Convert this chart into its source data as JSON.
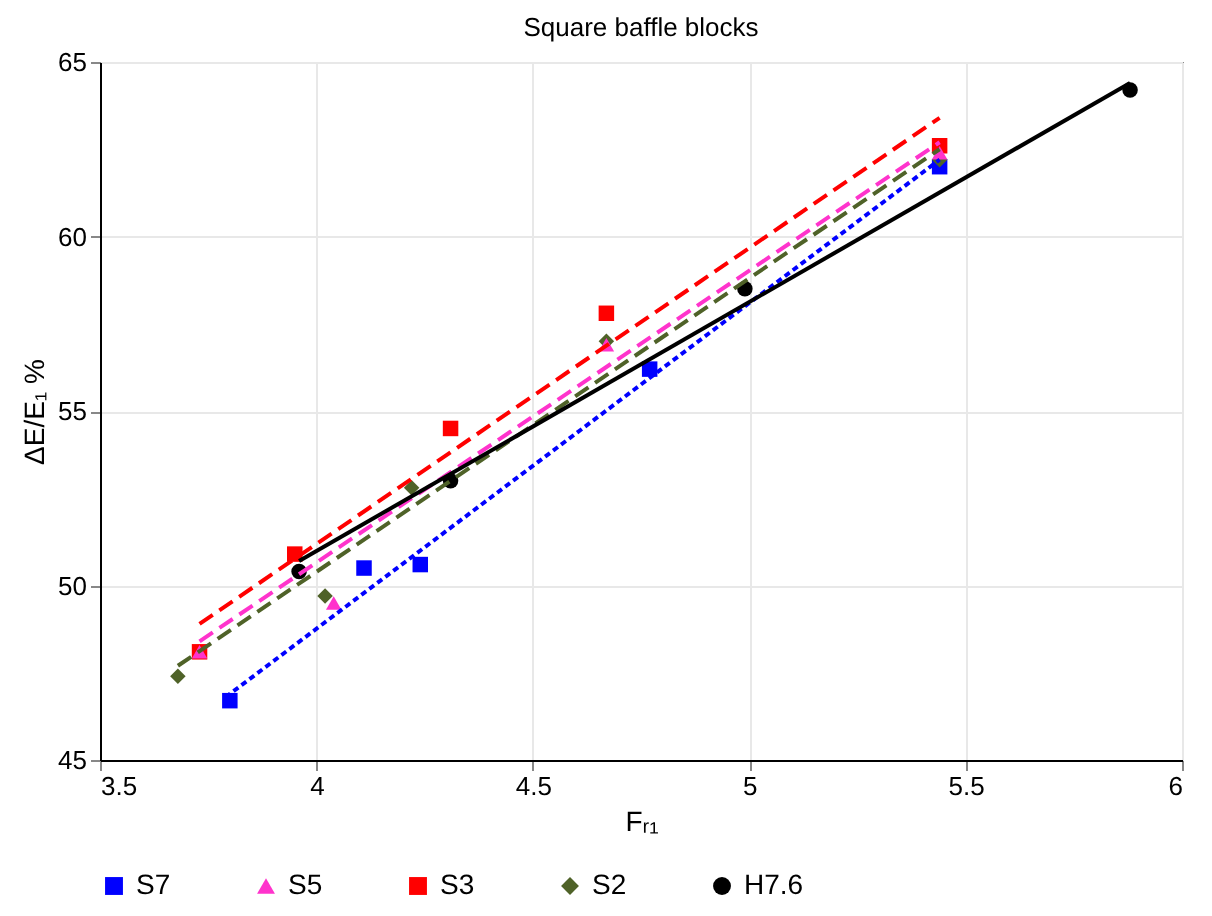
{
  "chart_data": {
    "type": "scatter",
    "title": "Square baffle blocks",
    "xlabel": "Fᵣ₁",
    "ylabel": "ΔE/E₁ %",
    "xlim": [
      3.5,
      6
    ],
    "xticks": [
      {
        "value": 3.5,
        "label": "3.5"
      },
      {
        "value": 4,
        "label": "4"
      },
      {
        "value": 4.5,
        "label": "4.5"
      },
      {
        "value": 5,
        "label": "5"
      },
      {
        "value": 5.5,
        "label": "5.5"
      },
      {
        "value": 6,
        "label": "6"
      }
    ],
    "ylim": [
      45,
      65
    ],
    "yticks": [
      45,
      50,
      55,
      60,
      65
    ],
    "grid": true,
    "legend": "bottom",
    "series": [
      {
        "name": "S7",
        "marker": "square",
        "color": "#0000ff",
        "x": [
          3.8,
          4.11,
          4.24,
          4.77,
          5.44
        ],
        "values": [
          46.7,
          50.5,
          50.6,
          56.2,
          62.0
        ]
      },
      {
        "name": "S5",
        "marker": "triangle",
        "color": "#ff33cc",
        "x": [
          3.73,
          4.04,
          4.67,
          5.44
        ],
        "values": [
          48.1,
          49.5,
          56.9,
          62.4
        ]
      },
      {
        "name": "S3",
        "marker": "square",
        "color": "#ff0000",
        "x": [
          3.73,
          3.95,
          4.31,
          4.67,
          5.44
        ],
        "values": [
          48.1,
          50.9,
          54.5,
          57.8,
          62.6
        ]
      },
      {
        "name": "S2",
        "marker": "diamond",
        "color": "#4f6228",
        "x": [
          3.68,
          4.02,
          4.22,
          4.67,
          5.44
        ],
        "values": [
          47.4,
          49.7,
          52.8,
          57.0,
          62.2
        ]
      },
      {
        "name": "H7.6",
        "marker": "circle",
        "color": "#000000",
        "x": [
          3.96,
          4.31,
          4.99,
          5.88
        ],
        "values": [
          50.4,
          53.0,
          58.5,
          64.2
        ]
      },
      {
        "type": "line",
        "line_style": "dotted",
        "color": "#0000ff",
        "x": [
          3.79,
          5.44
        ],
        "values": [
          46.8,
          62.2
        ]
      },
      {
        "type": "line",
        "line_style": "dashed",
        "color": "#ff33cc",
        "x": [
          3.73,
          5.44
        ],
        "values": [
          48.4,
          62.7
        ]
      },
      {
        "type": "line",
        "line_style": "dashed",
        "color": "#ff0000",
        "x": [
          3.73,
          5.44
        ],
        "values": [
          48.9,
          63.4
        ]
      },
      {
        "type": "line",
        "line_style": "dashed",
        "color": "#4f6228",
        "x": [
          3.68,
          5.44
        ],
        "values": [
          47.7,
          62.5
        ]
      },
      {
        "type": "line",
        "line_style": "solid",
        "color": "#000000",
        "x": [
          3.96,
          5.88
        ],
        "values": [
          50.7,
          64.4
        ]
      }
    ]
  }
}
